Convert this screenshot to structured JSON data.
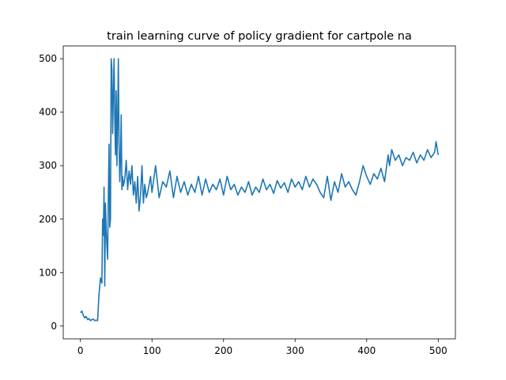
{
  "chart_data": {
    "type": "line",
    "title": "train learning curve of policy gradient for cartpole na",
    "xlabel": "",
    "ylabel": "",
    "xlim": [
      -24,
      524
    ],
    "ylim": [
      -24,
      524
    ],
    "xticks": [
      0,
      100,
      200,
      300,
      400,
      500
    ],
    "yticks": [
      0,
      100,
      200,
      300,
      400,
      500
    ],
    "grid": false,
    "legend": "none",
    "colors": {
      "line": "#1f77b4",
      "axes": "#000000",
      "background": "#ffffff"
    },
    "series": [
      {
        "x": [
          0,
          2,
          4,
          6,
          8,
          10,
          12,
          14,
          16,
          18,
          20,
          22,
          24,
          26,
          28,
          30,
          31,
          32,
          33,
          34,
          35,
          36,
          37,
          38,
          39,
          40,
          41,
          42,
          43,
          44,
          45,
          46,
          47,
          48,
          49,
          50,
          51,
          52,
          53,
          54,
          55,
          56,
          57,
          58,
          59,
          60,
          62,
          64,
          66,
          68,
          70,
          72,
          74,
          76,
          78,
          80,
          82,
          84,
          86,
          88,
          90,
          92,
          94,
          96,
          98,
          100,
          105,
          110,
          115,
          120,
          125,
          130,
          135,
          140,
          145,
          150,
          155,
          160,
          165,
          170,
          175,
          180,
          185,
          190,
          195,
          200,
          205,
          210,
          215,
          220,
          225,
          230,
          235,
          240,
          245,
          250,
          255,
          260,
          265,
          270,
          275,
          280,
          285,
          290,
          295,
          300,
          305,
          310,
          315,
          320,
          325,
          330,
          335,
          340,
          345,
          350,
          355,
          360,
          365,
          370,
          375,
          380,
          385,
          390,
          395,
          400,
          405,
          410,
          415,
          420,
          425,
          430,
          432,
          435,
          440,
          445,
          450,
          455,
          460,
          465,
          470,
          475,
          480,
          485,
          490,
          495,
          497,
          500
        ],
        "y": [
          25,
          28,
          20,
          15,
          18,
          12,
          14,
          10,
          12,
          13,
          10,
          11,
          10,
          60,
          90,
          80,
          200,
          170,
          260,
          75,
          230,
          180,
          150,
          125,
          240,
          340,
          185,
          200,
          500,
          480,
          360,
          430,
          500,
          390,
          320,
          440,
          300,
          380,
          500,
          340,
          270,
          310,
          395,
          255,
          280,
          262,
          275,
          310,
          255,
          290,
          265,
          300,
          245,
          270,
          230,
          280,
          215,
          245,
          300,
          230,
          265,
          240,
          250,
          265,
          280,
          250,
          300,
          240,
          270,
          260,
          290,
          240,
          280,
          250,
          270,
          245,
          265,
          250,
          280,
          245,
          275,
          250,
          265,
          255,
          275,
          245,
          280,
          255,
          265,
          245,
          260,
          250,
          270,
          245,
          260,
          250,
          275,
          255,
          265,
          248,
          272,
          258,
          268,
          250,
          275,
          260,
          270,
          255,
          280,
          260,
          275,
          265,
          250,
          240,
          280,
          235,
          270,
          250,
          285,
          260,
          270,
          255,
          245,
          270,
          300,
          280,
          265,
          285,
          275,
          295,
          270,
          320,
          300,
          330,
          310,
          320,
          300,
          315,
          310,
          325,
          305,
          320,
          310,
          330,
          315,
          325,
          345,
          320
        ]
      }
    ]
  }
}
